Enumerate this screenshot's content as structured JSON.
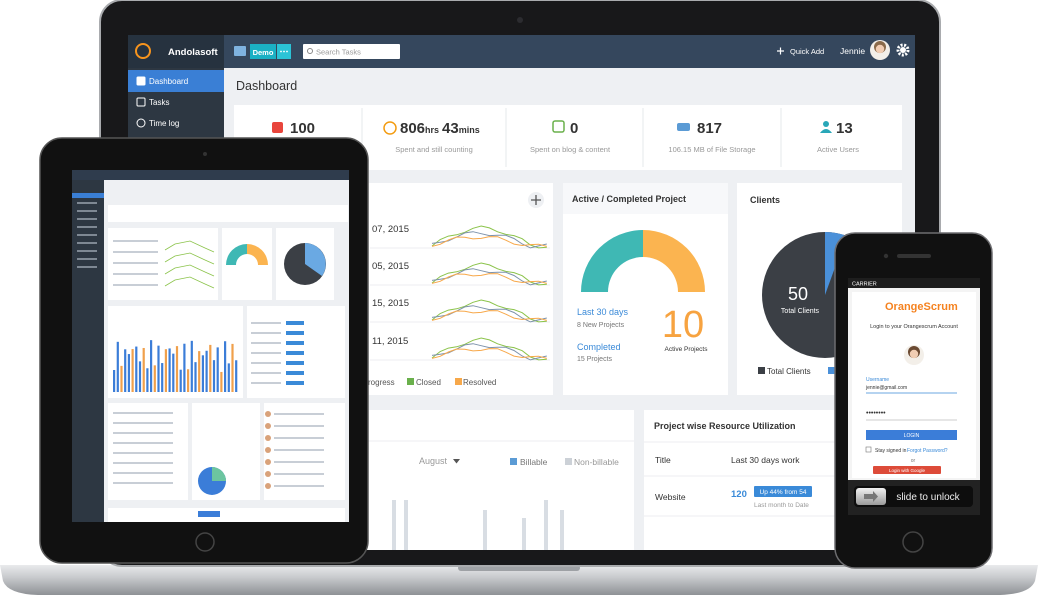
{
  "laptop": {
    "brand": "Andolasoft",
    "project_button": "Demo",
    "search_placeholder": "Search Tasks",
    "quick_add": "Quick Add",
    "user_name": "Jennie",
    "sidebar": [
      "Dashboard",
      "Tasks",
      "Time log"
    ],
    "page_title": "Dashboard",
    "stats": [
      {
        "value": "100"
      },
      {
        "parts": [
          "806",
          "hrs",
          "43",
          "mins"
        ],
        "caption": "Spent and still counting"
      },
      {
        "value": "0",
        "caption": "Spent on blog & content"
      },
      {
        "value": "817",
        "caption": "106.15 MB of File Storage"
      },
      {
        "value": "13",
        "caption": "Active Users"
      }
    ],
    "task_trend": {
      "dates": [
        "07, 2015",
        "05, 2015",
        "15, 2015",
        "11, 2015"
      ],
      "legend": [
        "rogress",
        "Closed",
        "Resolved"
      ]
    },
    "project_card": {
      "title": "Active / Completed Project",
      "last_30_days": "Last 30 days",
      "new_projects": "8 New Projects",
      "completed": "Completed",
      "completed_projects": "15 Projects",
      "active_count": "10",
      "active_label": "Active Projects"
    },
    "clients_card": {
      "title": "Clients",
      "total": "50",
      "total_label": "Total Clients",
      "legend": "Total Clients"
    },
    "timelog_card": {
      "month": "August",
      "legend": [
        "Billable",
        "Non-billable"
      ]
    },
    "resource_card": {
      "title": "Project wise Resource Utilization",
      "columns": [
        "Title",
        "Last 30 days work"
      ],
      "rows": [
        {
          "title": "Website",
          "hours": "120",
          "change": "Up 44% from 54",
          "period": "Last month to Date"
        }
      ]
    }
  },
  "phone": {
    "carrier": "CARRIER",
    "logo": "OrangeScrum",
    "heading": "Login to your Orangescrum Account",
    "username_label": "Username",
    "username": "jennie@gmail.com",
    "password": "••••••••",
    "login": "LOGIN",
    "stay_signed_in": "Stay signed in",
    "forgot": "Forgot Password?",
    "or": "or",
    "google": "Login with Google",
    "unlock": "slide to unlock"
  }
}
